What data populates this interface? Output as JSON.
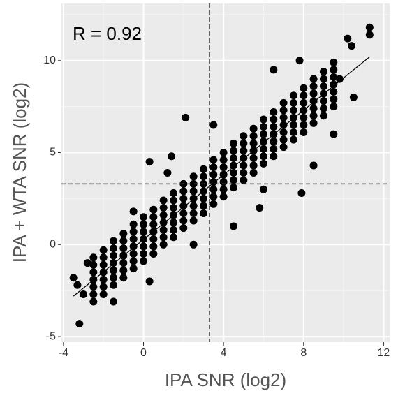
{
  "chart_data": {
    "type": "scatter",
    "xlabel": "IPA SNR (log2)",
    "ylabel": "IPA + WTA SNR (log2)",
    "annotation": "R = 0.92",
    "xlim": [
      -4.1,
      12.3
    ],
    "ylim": [
      -5.3,
      13.1
    ],
    "xticks": [
      -4,
      0,
      4,
      8,
      12
    ],
    "yticks": [
      -5,
      0,
      5,
      10
    ],
    "x_minor_grid": [
      -2,
      2,
      6,
      10
    ],
    "y_minor_grid": [
      -2.5,
      2.5,
      7.5,
      12.5
    ],
    "grid": true,
    "color": "#000000",
    "vlines": [
      3.3
    ],
    "hlines": [
      3.3
    ],
    "fit": {
      "x": [
        -3.5,
        11.3
      ],
      "y": [
        -2.8,
        10.2
      ]
    },
    "x": [
      -2.5,
      -2.5,
      -2.5,
      -2.5,
      -2.5,
      -2.5,
      -2.5,
      -2,
      -2,
      -2,
      -2,
      -2,
      -2,
      -2,
      -1.5,
      -1.5,
      -1.5,
      -1.5,
      -1.5,
      -1.5,
      -1.5,
      -1,
      -1,
      -1,
      -1,
      -1,
      -1,
      -1,
      -0.5,
      -0.5,
      -0.5,
      -0.5,
      -0.5,
      -0.5,
      -0.5,
      0,
      0,
      0,
      0,
      0,
      0,
      0,
      0.5,
      0.5,
      0.5,
      0.5,
      0.5,
      0.5,
      0.5,
      1,
      1,
      1,
      1,
      1,
      1,
      1,
      1.5,
      1.5,
      1.5,
      1.5,
      1.5,
      1.5,
      1.5,
      2,
      2,
      2,
      2,
      2,
      2,
      2,
      2.5,
      2.5,
      2.5,
      2.5,
      2.5,
      2.5,
      2.5,
      3,
      3,
      3,
      3,
      3,
      3,
      3,
      3.5,
      3.5,
      3.5,
      3.5,
      3.5,
      3.5,
      3.5,
      4,
      4,
      4,
      4,
      4,
      4,
      4,
      4.5,
      4.5,
      4.5,
      4.5,
      4.5,
      4.5,
      4.5,
      5,
      5,
      5,
      5,
      5,
      5,
      5,
      5.5,
      5.5,
      5.5,
      5.5,
      5.5,
      5.5,
      5.5,
      6,
      6,
      6,
      6,
      6,
      6,
      6,
      6.5,
      6.5,
      6.5,
      6.5,
      6.5,
      6.5,
      6.5,
      7,
      7,
      7,
      7,
      7,
      7,
      7,
      7.5,
      7.5,
      7.5,
      7.5,
      7.5,
      7.5,
      7.5,
      8,
      8,
      8,
      8,
      8,
      8,
      8,
      8.5,
      8.5,
      8.5,
      8.5,
      8.5,
      8.5,
      8.5,
      9,
      9,
      9,
      9,
      9,
      9,
      9,
      9.5,
      9.5,
      9.5,
      9.5,
      9.5,
      9.5,
      9.5,
      -3.2,
      -3.5,
      -3.0,
      -3.3,
      -2.8,
      1.4,
      0.3,
      2.1,
      1.2,
      4.5,
      5.8,
      7.9,
      8.5,
      9.5,
      10.5,
      11.3,
      11.3,
      10.2,
      10.4,
      9.8,
      -1.5,
      0.3,
      3.5,
      6.5,
      7.8,
      6.0,
      -0.5,
      2.5
    ],
    "y": [
      -3.1,
      -2.7,
      -2.3,
      -1.9,
      -1.5,
      -1.1,
      -0.7,
      -2.7,
      -2.3,
      -1.9,
      -1.5,
      -1.1,
      -0.7,
      -0.3,
      -2.2,
      -1.8,
      -1.4,
      -1.0,
      -0.6,
      -0.2,
      0.2,
      -1.8,
      -1.4,
      -1.0,
      -0.6,
      -0.2,
      0.2,
      0.6,
      -1.3,
      -0.9,
      -0.5,
      -0.1,
      0.3,
      0.7,
      1.1,
      -0.9,
      -0.5,
      -0.1,
      0.3,
      0.7,
      1.1,
      1.5,
      -0.5,
      -0.1,
      0.3,
      0.7,
      1.1,
      1.5,
      1.9,
      0,
      0.4,
      0.8,
      1.2,
      1.6,
      2.0,
      2.4,
      0.4,
      0.8,
      1.2,
      1.6,
      2.0,
      2.4,
      2.8,
      0.9,
      1.3,
      1.7,
      2.1,
      2.5,
      2.9,
      3.3,
      1.3,
      1.7,
      2.1,
      2.5,
      2.9,
      3.3,
      3.7,
      1.7,
      2.1,
      2.5,
      2.9,
      3.3,
      3.7,
      4.1,
      2.2,
      2.6,
      3.0,
      3.4,
      3.8,
      4.2,
      4.6,
      2.6,
      3.0,
      3.4,
      3.8,
      4.2,
      4.6,
      5.0,
      3.1,
      3.5,
      3.9,
      4.3,
      4.7,
      5.1,
      5.5,
      3.5,
      3.9,
      4.3,
      4.7,
      5.1,
      5.5,
      5.9,
      3.9,
      4.3,
      4.7,
      5.1,
      5.5,
      5.9,
      6.3,
      4.4,
      4.8,
      5.2,
      5.6,
      6.0,
      6.4,
      6.8,
      4.8,
      5.2,
      5.6,
      6.0,
      6.4,
      6.8,
      7.2,
      5.3,
      5.7,
      6.1,
      6.5,
      6.9,
      7.3,
      7.7,
      5.7,
      6.1,
      6.5,
      6.9,
      7.3,
      7.7,
      8.1,
      6.1,
      6.5,
      6.9,
      7.3,
      7.7,
      8.1,
      8.5,
      6.6,
      7.0,
      7.4,
      7.8,
      8.2,
      8.6,
      9.0,
      7.0,
      7.4,
      7.8,
      8.2,
      8.6,
      9.0,
      9.4,
      7.5,
      7.9,
      8.3,
      8.7,
      9.1,
      9.5,
      9.9,
      -4.3,
      -1.8,
      -2.7,
      -2.2,
      -1.0,
      4.8,
      4.5,
      6.9,
      3.9,
      1.0,
      2.0,
      2.8,
      4.3,
      6.0,
      8.0,
      11.8,
      11.4,
      11.2,
      10.8,
      9.0,
      -3.1,
      -2.0,
      6.5,
      9.5,
      10.0,
      3.0,
      1.8,
      0.0
    ]
  }
}
